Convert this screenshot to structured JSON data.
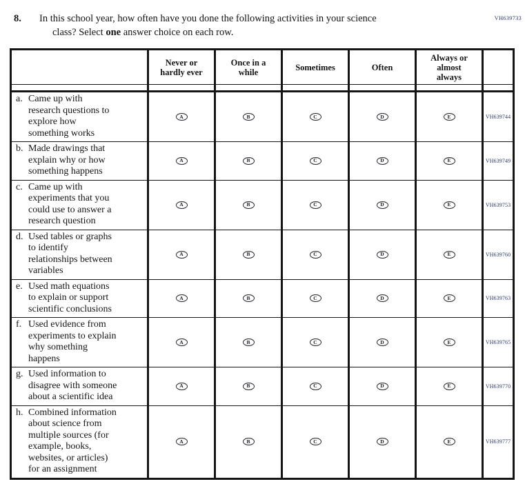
{
  "page": {
    "top_code": "VH639733"
  },
  "question": {
    "number": "8.",
    "part1": "In this school year, how often have you done the following activities in your science\nclass? Select ",
    "bold": "one",
    "part2": " answer choice on each row."
  },
  "table": {
    "columns": [
      "Never or\nhardly ever",
      "Once in a\nwhile",
      "Sometimes",
      "Often",
      "Always or\nalmost\nalways"
    ],
    "option_letters": [
      "A",
      "B",
      "C",
      "D",
      "E"
    ],
    "rows": [
      {
        "id": "a.",
        "label": "Came up with\nresearch questions to\nexplore how\nsomething works",
        "code": "VH639744"
      },
      {
        "id": "b.",
        "label": "Made drawings that\nexplain why or how\nsomething happens",
        "code": "VH639749"
      },
      {
        "id": "c.",
        "label": "Came up with\nexperiments that you\ncould use to answer a\nresearch question",
        "code": "VH639753"
      },
      {
        "id": "d.",
        "label": "Used tables or graphs\nto identify\nrelationships between\nvariables",
        "code": "VH639760"
      },
      {
        "id": "e.",
        "label": "Used math equations\nto explain or support\nscientific conclusions",
        "code": "VH639763"
      },
      {
        "id": "f.",
        "label": "Used evidence from\nexperiments to explain\nwhy something\nhappens",
        "code": "VH639765"
      },
      {
        "id": "g.",
        "label": "Used information to\ndisagree with someone\nabout a scientific idea",
        "code": "VH639770"
      },
      {
        "id": "h.",
        "label": "Combined information\nabout science from\nmultiple sources (for\nexample, books,\nwebsites, or articles)\nfor an assignment",
        "code": "VH639777"
      }
    ]
  },
  "colors": {
    "code_text": "#2b3a67",
    "border": "#141414"
  }
}
